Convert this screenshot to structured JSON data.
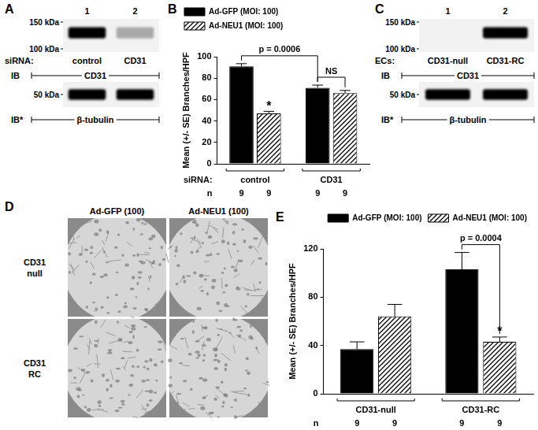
{
  "chart_data": [
    {
      "panel": "B",
      "type": "bar",
      "y_label": "Mean (+/- SE) Branches/HPF",
      "category_label": "siRNA:",
      "categories": [
        "control",
        "CD31"
      ],
      "series": [
        {
          "name": "Ad-GFP (MOI: 100)",
          "color": "#000000",
          "line_style": "solid",
          "values": [
            91,
            71
          ],
          "errors": [
            2.5,
            2.5
          ],
          "n": [
            9,
            9
          ]
        },
        {
          "name": "Ad-NEU1 (MOI: 100)",
          "color": "#000000",
          "line_style": "hatched",
          "values": [
            47,
            66
          ],
          "errors": [
            2,
            2.5
          ],
          "n": [
            9,
            9
          ]
        }
      ],
      "n_label": "n",
      "ylim": [
        0,
        100
      ],
      "yticks": [
        0,
        20,
        40,
        60,
        80,
        100
      ],
      "grid": false,
      "legend": "top-left",
      "annotations": [
        {
          "text": "p = 0.0006",
          "between": [
            [
              "Ad-GFP (MOI: 100)",
              "control"
            ],
            [
              "Ad-GFP (MOI: 100)",
              "CD31"
            ]
          ]
        },
        {
          "text": "NS",
          "between": [
            [
              "Ad-GFP (MOI: 100)",
              "CD31"
            ],
            [
              "Ad-NEU1 (MOI: 100)",
              "CD31"
            ]
          ]
        },
        {
          "text": "*",
          "at": [
            "Ad-NEU1 (MOI: 100)",
            "control"
          ]
        }
      ]
    },
    {
      "panel": "E",
      "type": "bar",
      "y_label": "Mean (+/- SE) Branches/HPF",
      "categories": [
        "CD31-null",
        "CD31-RC"
      ],
      "series": [
        {
          "name": "Ad-GFP (MOI: 100)",
          "color": "#000000",
          "line_style": "solid",
          "values": [
            37,
            103
          ],
          "errors": [
            6,
            14
          ],
          "n": [
            9,
            9
          ]
        },
        {
          "name": "Ad-NEU1 (MOI: 100)",
          "color": "#000000",
          "line_style": "hatched",
          "values": [
            64,
            43
          ],
          "errors": [
            10,
            4
          ],
          "n": [
            9,
            9
          ]
        }
      ],
      "n_label": "n",
      "ylim": [
        0,
        120
      ],
      "yticks": [
        0,
        40,
        80,
        120
      ],
      "grid": false,
      "legend": "top-right",
      "annotations": [
        {
          "text": "p = 0.0004",
          "between": [
            [
              "Ad-GFP (MOI: 100)",
              "CD31-RC"
            ],
            [
              "Ad-NEU1 (MOI: 100)",
              "CD31-RC"
            ]
          ]
        },
        {
          "text": "*",
          "at": [
            "Ad-NEU1 (MOI: 100)",
            "CD31-RC"
          ]
        }
      ]
    }
  ],
  "blots": [
    {
      "panel": "A",
      "lanes": [
        1,
        2
      ],
      "condition_label": "siRNA:",
      "conditions": [
        "control",
        "CD31"
      ],
      "blots": [
        {
          "ib_label": "IB",
          "target": "CD31",
          "markers": [
            {
              "value": 150,
              "label": "150 kDa"
            },
            {
              "value": 100,
              "label": "100 kDa"
            }
          ],
          "band_intensity": [
            1,
            0.3
          ]
        },
        {
          "ib_label": "IB*",
          "target": "β-tubulin",
          "markers": [
            {
              "value": 50,
              "label": "50 kDa"
            }
          ],
          "band_intensity": [
            1,
            1
          ]
        }
      ]
    },
    {
      "panel": "C",
      "lanes": [
        1,
        2
      ],
      "condition_label": "ECs:",
      "conditions": [
        "CD31-null",
        "CD31-RC"
      ],
      "blots": [
        {
          "ib_label": "IB",
          "target": "CD31",
          "markers": [
            {
              "value": 150,
              "label": "150 kDa"
            },
            {
              "value": 100,
              "label": "100 kDa"
            }
          ],
          "band_intensity": [
            0,
            1
          ]
        },
        {
          "ib_label": "IB*",
          "target": "β-tubulin",
          "markers": [
            {
              "value": 50,
              "label": "50 kDa"
            }
          ],
          "band_intensity": [
            1,
            1
          ]
        }
      ]
    }
  ],
  "micrographs": {
    "panel": "D",
    "columns": [
      "Ad-GFP (100)",
      "Ad-NEU1 (100)"
    ],
    "rows": [
      "CD31 null",
      "CD31 RC"
    ]
  }
}
